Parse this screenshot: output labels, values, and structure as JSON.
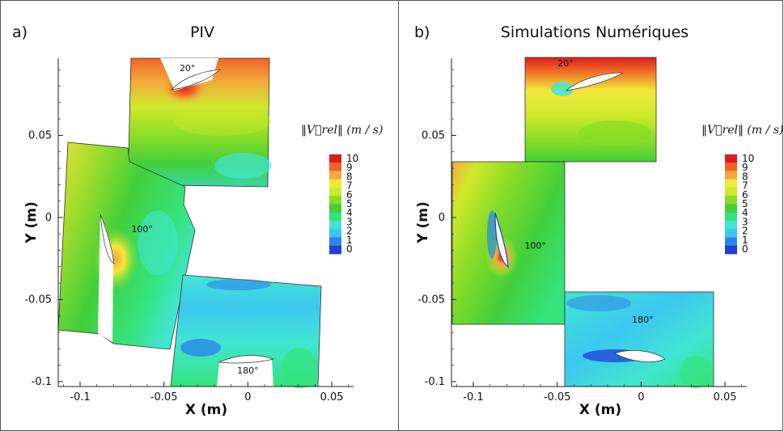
{
  "chart_data": [
    {
      "type": "heatmap",
      "panel_label": "a)",
      "title": "PIV",
      "xlabel": "X (m)",
      "ylabel": "Y (m)",
      "xlim": [
        -0.113,
        0.063
      ],
      "ylim": [
        -0.103,
        0.097
      ],
      "xticks": [
        -0.1,
        -0.05,
        0,
        0.05
      ],
      "xtick_labels": [
        "-0.1",
        "-0.05",
        "0",
        "0.05"
      ],
      "yticks": [
        -0.1,
        -0.05,
        0,
        0.05
      ],
      "ytick_labels": [
        "-0.1",
        "-0.05",
        "0",
        "0.05"
      ],
      "annotations": [
        {
          "text": "20°",
          "x": -0.036,
          "y": 0.089
        },
        {
          "text": "100°",
          "x": -0.063,
          "y": -0.009
        },
        {
          "text": "180°",
          "x": 0.0,
          "y": -0.095
        }
      ],
      "colorbar": {
        "title": "‖V⃗rel‖ (m / s)",
        "ticks": [
          10,
          9,
          8,
          7,
          6,
          5,
          4,
          3,
          2,
          1,
          0
        ],
        "range": [
          0,
          10
        ],
        "colors": [
          "#1f3fd6",
          "#2c86ea",
          "#3cc7f0",
          "#42e5d2",
          "#35e27c",
          "#42cf3a",
          "#86dc27",
          "#cfe92c",
          "#f3e83a",
          "#f4a93b",
          "#ef6426",
          "#dc1d1d"
        ]
      }
    },
    {
      "type": "heatmap",
      "panel_label": "b)",
      "title": "Simulations Numériques",
      "xlabel": "X (m)",
      "ylabel": "Y (m)",
      "xlim": [
        -0.113,
        0.063
      ],
      "ylim": [
        -0.103,
        0.097
      ],
      "xticks": [
        -0.1,
        -0.05,
        0,
        0.05
      ],
      "xtick_labels": [
        "-0.1",
        "-0.05",
        "0",
        "0.05"
      ],
      "yticks": [
        -0.1,
        -0.05,
        0,
        0.05
      ],
      "ytick_labels": [
        "-0.1",
        "-0.05",
        "0",
        "0.05"
      ],
      "annotations": [
        {
          "text": "20°",
          "x": -0.045,
          "y": 0.092
        },
        {
          "text": "100°",
          "x": -0.063,
          "y": -0.019
        },
        {
          "text": "180°",
          "x": 0.001,
          "y": -0.064
        }
      ],
      "colorbar": {
        "title": "‖V⃗rel‖ (m / s)",
        "ticks": [
          10,
          9,
          8,
          7,
          6,
          5,
          4,
          3,
          2,
          1,
          0
        ],
        "range": [
          0,
          10
        ],
        "colors": [
          "#1f3fd6",
          "#2c86ea",
          "#3cc7f0",
          "#42e5d2",
          "#35e27c",
          "#42cf3a",
          "#86dc27",
          "#cfe92c",
          "#f3e83a",
          "#f4a93b",
          "#ef6426",
          "#dc1d1d"
        ]
      }
    }
  ]
}
